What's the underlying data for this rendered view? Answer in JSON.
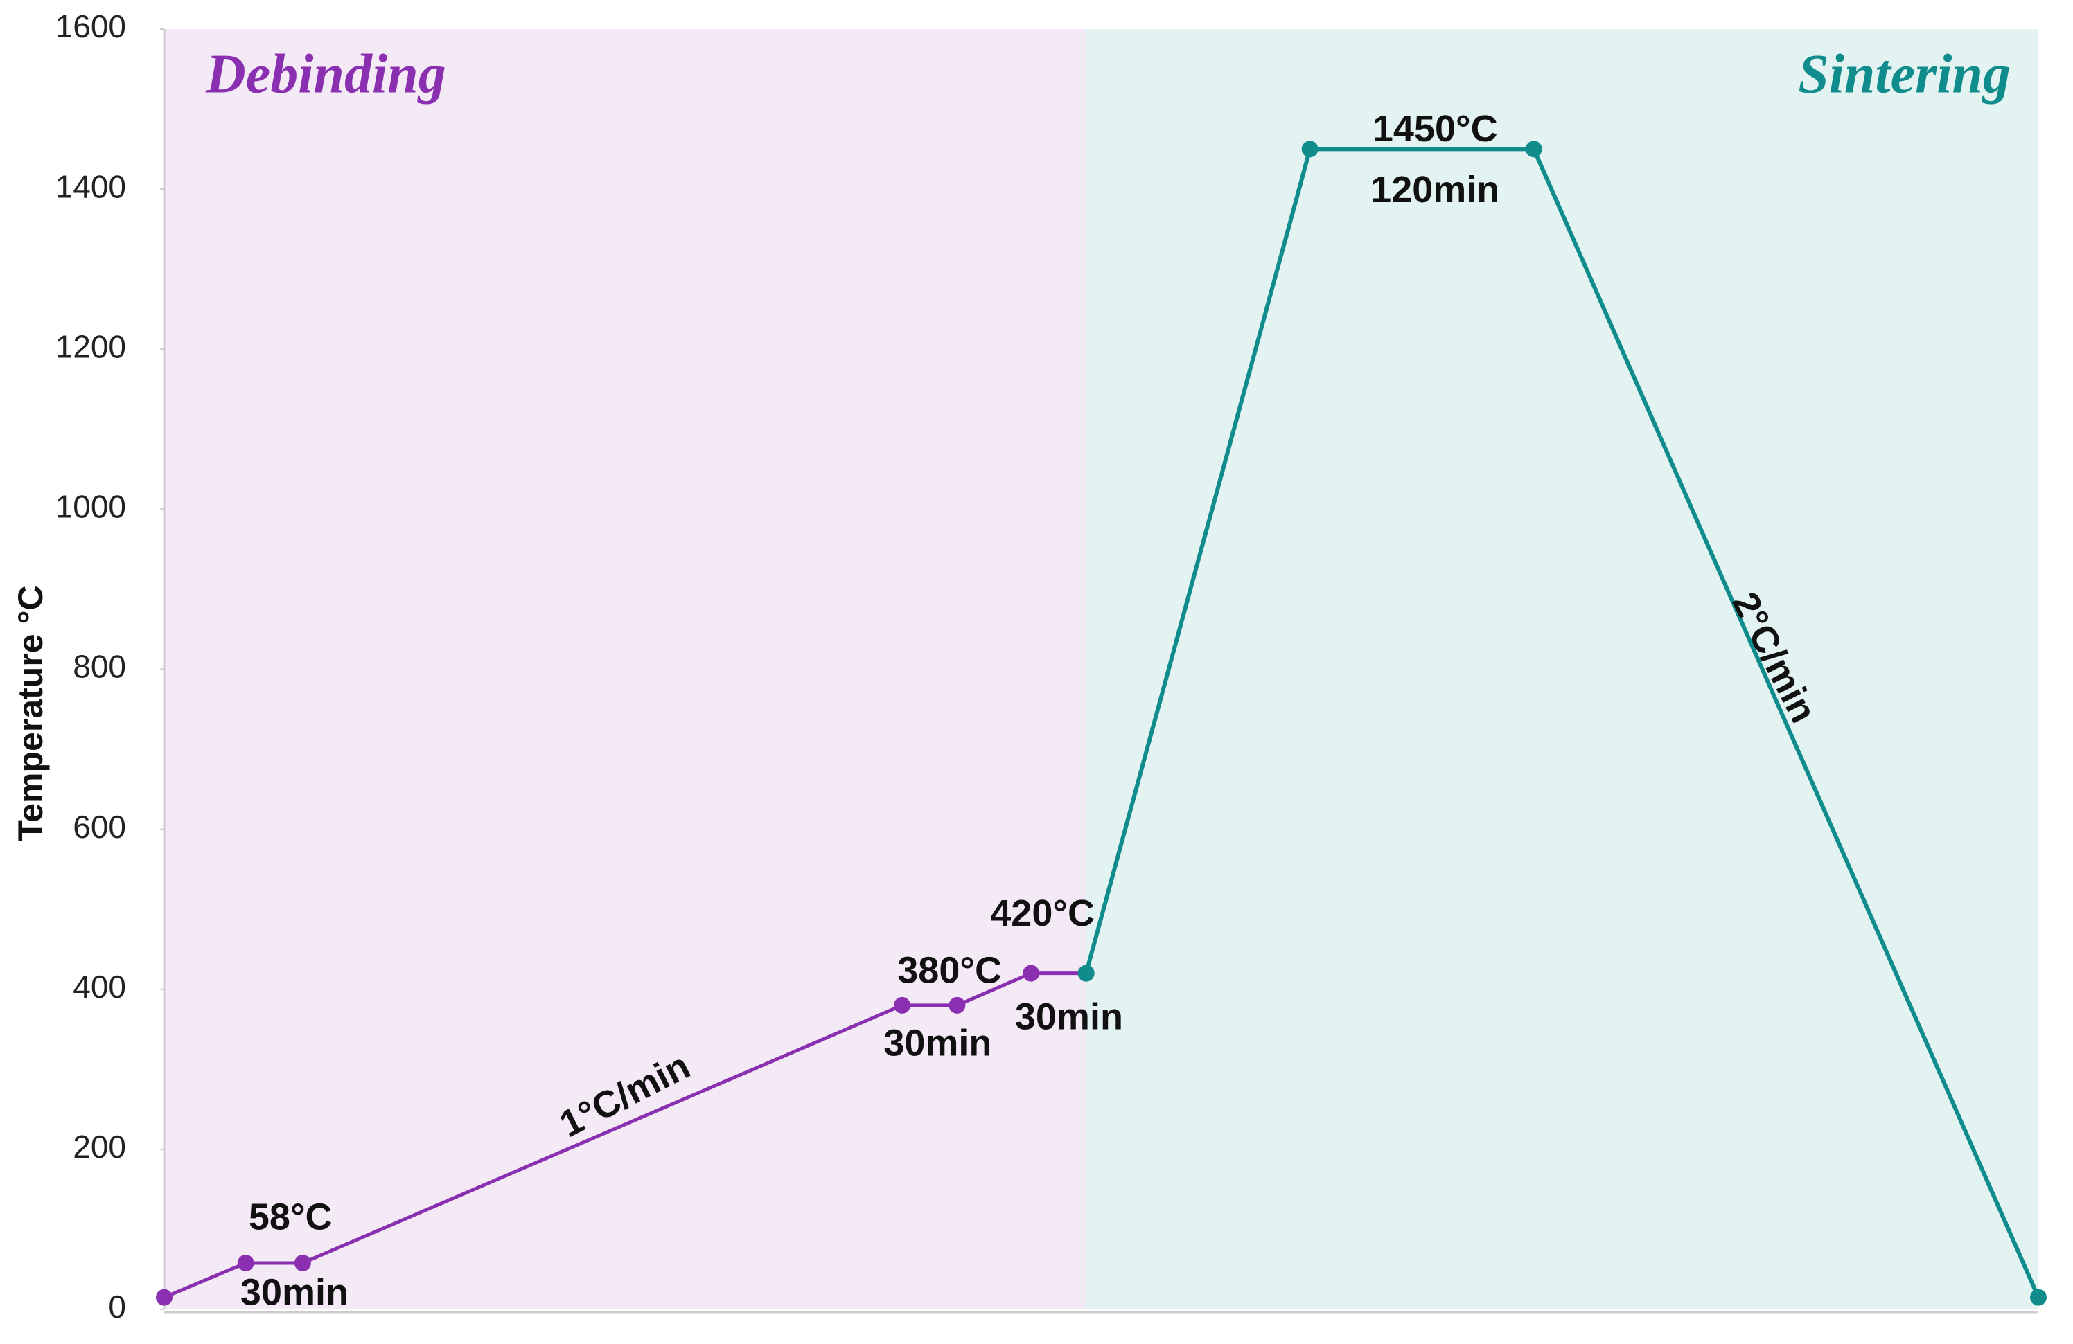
{
  "chart_data": {
    "type": "line",
    "y_label": "Temperature °C",
    "regions": [
      {
        "name": "Debinding",
        "color": "#f3eaf6",
        "label_color": "#8a2fb0",
        "xlim": [
          0,
          486
        ]
      },
      {
        "name": "Sintering",
        "color": "#e3f3f2",
        "label_color": "#108c8c",
        "xlim": [
          486,
          988
        ]
      }
    ],
    "series": [
      {
        "name": "Debinding",
        "color": "#8a2fb0",
        "x": [
          0,
          43,
          73,
          389,
          418,
          457,
          486
        ],
        "values": [
          15,
          58,
          58,
          380,
          380,
          420,
          420
        ]
      },
      {
        "name": "Sintering",
        "color": "#108c8c",
        "x": [
          486,
          604,
          722,
          988
        ],
        "values": [
          420,
          1450,
          1450,
          15
        ]
      }
    ],
    "annotations": [
      "58°C",
      "30min",
      "1°C/min",
      "380°C",
      "30min",
      "420°C",
      "30min",
      "1450°C",
      "120min",
      "2°C/min"
    ],
    "xlim": [
      0,
      988
    ],
    "ylim": [
      0,
      1600
    ],
    "yticks": [
      0,
      200,
      400,
      600,
      800,
      1000,
      1200,
      1400,
      1600
    ]
  }
}
